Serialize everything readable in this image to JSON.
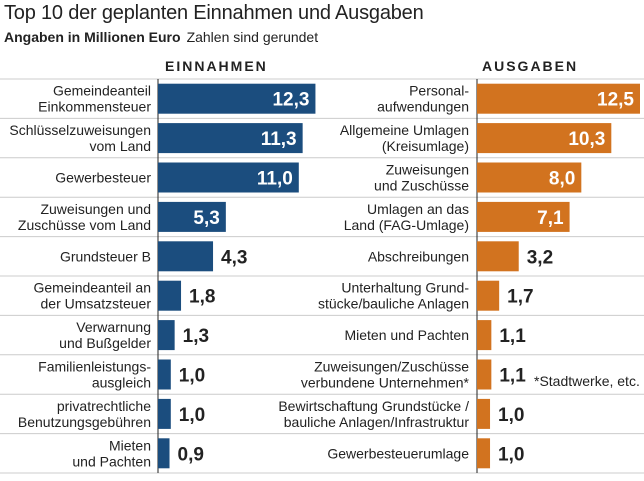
{
  "title": "Top 10 der geplanten Einnahmen und Ausgaben",
  "subtitle_bold": "Angaben in Millionen Euro",
  "subtitle_note": "Zahlen sind gerundet",
  "footnote": "*Stadtwerke, etc.",
  "colors": {
    "income": "#1b4d7e",
    "expense": "#d2731f",
    "grid": "#cccccc",
    "text": "#222222"
  },
  "chart_data": [
    {
      "type": "bar",
      "orientation": "horizontal",
      "title": "EINNAHMEN",
      "unit": "Mio. Euro",
      "categories": [
        [
          "Gemeindeanteil",
          "Einkommensteuer"
        ],
        [
          "Schlüsselzuweisungen",
          "vom Land"
        ],
        [
          "Gewerbesteuer"
        ],
        [
          "Zuweisungen und",
          "Zuschüsse vom Land"
        ],
        [
          "Grundsteuer B"
        ],
        [
          "Gemeindeanteil an",
          "der Umsatzsteuer"
        ],
        [
          "Verwarnung",
          "und Bußgelder"
        ],
        [
          "Familienleistungs-",
          "ausgleich"
        ],
        [
          "privatrechtliche",
          "Benutzungsgebühren"
        ],
        [
          "Mieten",
          "und Pachten"
        ]
      ],
      "values": [
        12.3,
        11.3,
        11.0,
        5.3,
        4.3,
        1.8,
        1.3,
        1.0,
        1.0,
        0.9
      ],
      "labels": [
        "12,3",
        "11,3",
        "11,0",
        "5,3",
        "4,3",
        "1,8",
        "1,3",
        "1,0",
        "1,0",
        "0,9"
      ]
    },
    {
      "type": "bar",
      "orientation": "horizontal",
      "title": "AUSGABEN",
      "unit": "Mio. Euro",
      "categories": [
        [
          "Personal-",
          "aufwendungen"
        ],
        [
          "Allgemeine Umlagen",
          "(Kreisumlage)"
        ],
        [
          "Zuweisungen",
          "und Zuschüsse"
        ],
        [
          "Umlagen an das",
          "Land (FAG-Umlage)"
        ],
        [
          "Abschreibungen"
        ],
        [
          "Unterhaltung Grund-",
          "stücke/bauliche Anlagen"
        ],
        [
          "Mieten und Pachten"
        ],
        [
          "Zuweisungen/Zuschüsse",
          "verbundene Unternehmen*"
        ],
        [
          "Bewirtschaftung Grundstücke /",
          "bauliche Anlagen/Infrastruktur"
        ],
        [
          "Gewerbesteuerumlage"
        ]
      ],
      "values": [
        12.5,
        10.3,
        8.0,
        7.1,
        3.2,
        1.7,
        1.1,
        1.1,
        1.0,
        1.0
      ],
      "labels": [
        "12,5",
        "10,3",
        "8,0",
        "7,1",
        "3,2",
        "1,7",
        "1,1",
        "1,1",
        "1,0",
        "1,0"
      ]
    }
  ]
}
